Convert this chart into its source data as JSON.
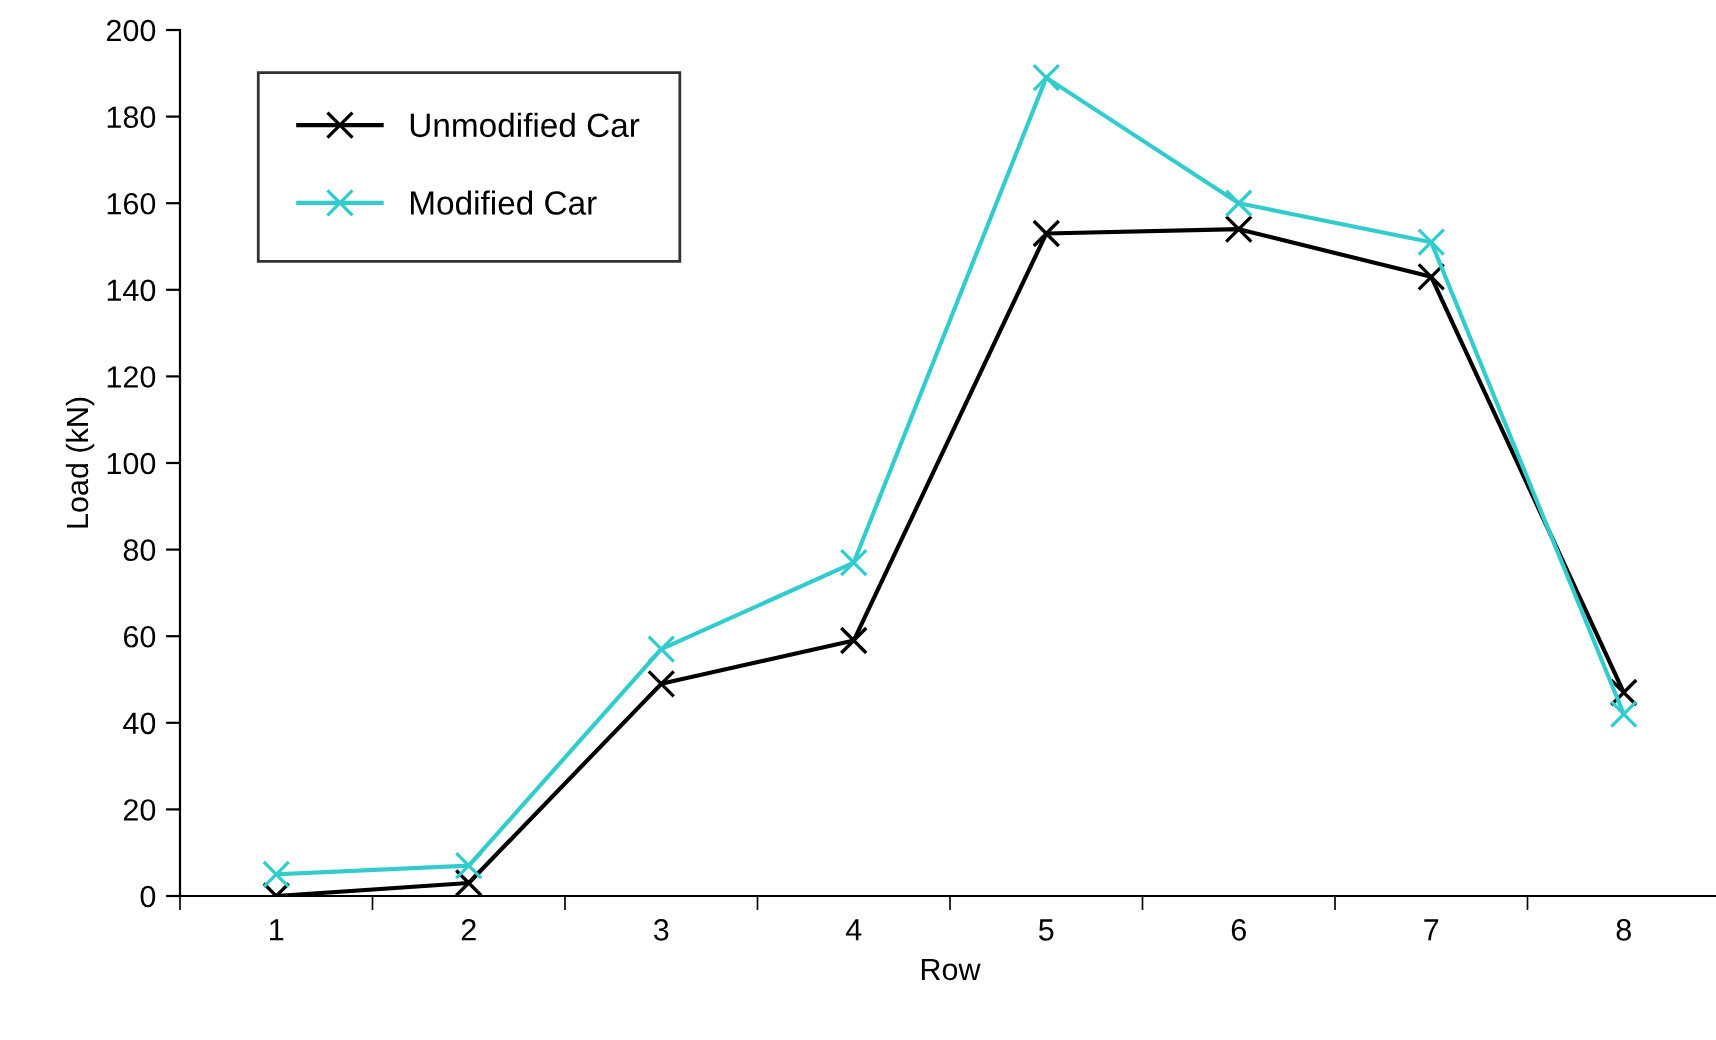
{
  "chart_data": {
    "type": "line",
    "xlabel": "Row",
    "ylabel": "Load (kN)",
    "categories": [
      "1",
      "2",
      "3",
      "4",
      "5",
      "6",
      "7",
      "8"
    ],
    "series": [
      {
        "name": "Unmodified Car",
        "color": "#000000",
        "values": [
          0,
          3,
          49,
          59,
          153,
          154,
          143,
          47
        ]
      },
      {
        "name": "Modified Car",
        "color": "#33cccc",
        "values": [
          5,
          7,
          57,
          77,
          189,
          160,
          151,
          42
        ]
      }
    ],
    "ylim": [
      0,
      200
    ],
    "yticks": [
      0,
      20,
      40,
      60,
      80,
      100,
      120,
      140,
      160,
      180,
      200
    ],
    "marker": "cross",
    "legend": "top left",
    "grid": false
  }
}
